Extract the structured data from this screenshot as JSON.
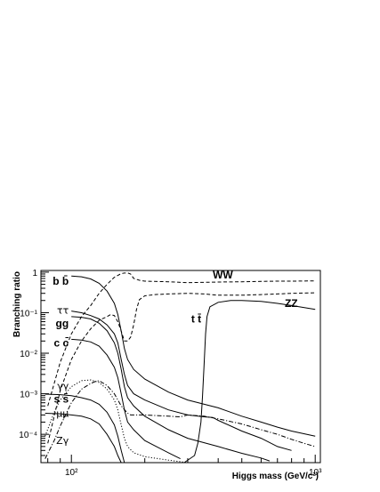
{
  "chart_data": {
    "type": "line",
    "xlabel": "Higgs mass (GeV/c²)",
    "ylabel": "Branching ratio",
    "xscale": "log",
    "yscale": "log",
    "xlim": [
      75,
      1050
    ],
    "ylim": [
      2e-05,
      1.1
    ],
    "x_ticks": [
      {
        "value": 100,
        "label": "10²"
      },
      {
        "value": 1000,
        "label": "10³"
      }
    ],
    "y_ticks": [
      {
        "value": 1,
        "label": "1"
      },
      {
        "value": 0.1,
        "label": "10⁻¹"
      },
      {
        "value": 0.01,
        "label": "10⁻²"
      },
      {
        "value": 0.001,
        "label": "10⁻³"
      },
      {
        "value": 0.0001,
        "label": "10⁻⁴"
      }
    ],
    "series": [
      {
        "name": "b b̄",
        "style": "solid",
        "label_pos": [
          100,
          0.6
        ],
        "points": [
          [
            100,
            0.8
          ],
          [
            110,
            0.77
          ],
          [
            120,
            0.68
          ],
          [
            130,
            0.53
          ],
          [
            140,
            0.34
          ],
          [
            150,
            0.17
          ],
          [
            155,
            0.09
          ],
          [
            160,
            0.035
          ],
          [
            165,
            0.013
          ],
          [
            170,
            0.007
          ],
          [
            180,
            0.004
          ],
          [
            200,
            0.0023
          ],
          [
            250,
            0.0011
          ],
          [
            300,
            0.0007
          ],
          [
            400,
            0.00045
          ],
          [
            500,
            0.00028
          ],
          [
            600,
            0.0002
          ],
          [
            700,
            0.00015
          ],
          [
            800,
            0.00012
          ],
          [
            1000,
            9e-05
          ]
        ]
      },
      {
        "name": "ττ",
        "style": "solid",
        "label_pos": [
          100,
          0.115
        ],
        "points": [
          [
            100,
            0.08
          ],
          [
            110,
            0.077
          ],
          [
            120,
            0.07
          ],
          [
            130,
            0.055
          ],
          [
            140,
            0.036
          ],
          [
            150,
            0.018
          ],
          [
            155,
            0.01
          ],
          [
            160,
            0.004
          ],
          [
            165,
            0.0015
          ],
          [
            170,
            0.0008
          ],
          [
            180,
            0.0005
          ],
          [
            200,
            0.00028
          ],
          [
            250,
            0.00013
          ],
          [
            300,
            8e-05
          ],
          [
            400,
            5e-05
          ],
          [
            500,
            3.4e-05
          ],
          [
            600,
            2.6e-05
          ],
          [
            650,
            2.2e-05
          ]
        ]
      },
      {
        "name": "gg",
        "style": "solid",
        "label_pos": [
          100,
          0.055
        ],
        "points": [
          [
            100,
            0.11
          ],
          [
            110,
            0.1
          ],
          [
            120,
            0.085
          ],
          [
            130,
            0.07
          ],
          [
            140,
            0.05
          ],
          [
            150,
            0.03
          ],
          [
            155,
            0.018
          ],
          [
            160,
            0.007
          ],
          [
            165,
            0.003
          ],
          [
            170,
            0.0016
          ],
          [
            180,
            0.001
          ],
          [
            200,
            0.0007
          ],
          [
            250,
            0.0004
          ],
          [
            300,
            0.0003
          ],
          [
            350,
            0.00027
          ],
          [
            380,
            0.00026
          ],
          [
            400,
            0.00022
          ],
          [
            500,
            0.00012
          ],
          [
            600,
            8e-05
          ],
          [
            700,
            5e-05
          ],
          [
            800,
            4e-05
          ]
        ]
      },
      {
        "name": "c c̄",
        "style": "solid",
        "label_pos": [
          100,
          0.018
        ],
        "points": [
          [
            100,
            0.022
          ],
          [
            110,
            0.021
          ],
          [
            120,
            0.019
          ],
          [
            130,
            0.015
          ],
          [
            140,
            0.009
          ],
          [
            150,
            0.0045
          ],
          [
            155,
            0.0025
          ],
          [
            160,
            0.001
          ],
          [
            165,
            0.0004
          ],
          [
            170,
            0.0002
          ],
          [
            180,
            0.00013
          ],
          [
            200,
            7e-05
          ],
          [
            250,
            3.5e-05
          ],
          [
            280,
            2.5e-05
          ]
        ]
      },
      {
        "name": "γγ",
        "style": "dotted",
        "label_pos": [
          100,
          0.0016
        ],
        "points": [
          [
            78,
            9e-05
          ],
          [
            85,
            0.00035
          ],
          [
            90,
            0.0007
          ],
          [
            100,
            0.0015
          ],
          [
            110,
            0.0021
          ],
          [
            120,
            0.0022
          ],
          [
            130,
            0.0019
          ],
          [
            140,
            0.0013
          ],
          [
            150,
            0.0007
          ],
          [
            155,
            0.0004
          ],
          [
            160,
            0.00017
          ],
          [
            165,
            8e-05
          ],
          [
            170,
            5e-05
          ],
          [
            180,
            3.5e-05
          ],
          [
            200,
            2.8e-05
          ],
          [
            250,
            2.3e-05
          ],
          [
            300,
            2e-05
          ]
        ]
      },
      {
        "name": "s s̄",
        "style": "solid",
        "label_pos": [
          100,
          0.00075
        ],
        "points": [
          [
            78,
            0.00098
          ],
          [
            90,
            0.00095
          ],
          [
            100,
            0.0009
          ],
          [
            110,
            0.0008
          ],
          [
            120,
            0.0007
          ],
          [
            130,
            0.00055
          ],
          [
            140,
            0.00035
          ],
          [
            150,
            0.00017
          ],
          [
            155,
            9e-05
          ],
          [
            160,
            4e-05
          ],
          [
            165,
            2e-05
          ]
        ]
      },
      {
        "name": "μμ",
        "style": "solid",
        "label_pos": [
          100,
          0.00033
        ],
        "points": [
          [
            78,
            0.00033
          ],
          [
            90,
            0.00032
          ],
          [
            100,
            0.0003
          ],
          [
            110,
            0.00028
          ],
          [
            120,
            0.00024
          ],
          [
            130,
            0.00018
          ],
          [
            140,
            0.0001
          ],
          [
            150,
            5e-05
          ],
          [
            155,
            3e-05
          ],
          [
            160,
            2e-05
          ]
        ]
      },
      {
        "name": "Zγ",
        "style": "dashdot",
        "label_pos": [
          100,
          7e-05
        ],
        "points": [
          [
            78,
            2.5e-05
          ],
          [
            85,
            7e-05
          ],
          [
            90,
            0.00016
          ],
          [
            100,
            0.0006
          ],
          [
            110,
            0.0013
          ],
          [
            120,
            0.0018
          ],
          [
            125,
            0.002
          ],
          [
            130,
            0.0021
          ],
          [
            140,
            0.0016
          ],
          [
            150,
            0.001
          ],
          [
            160,
            0.0005
          ],
          [
            170,
            0.00033
          ],
          [
            175,
            0.0003
          ],
          [
            180,
            0.0003
          ],
          [
            200,
            0.0003
          ],
          [
            250,
            0.00028
          ],
          [
            280,
            0.00027
          ],
          [
            300,
            0.0003
          ],
          [
            350,
            0.00028
          ],
          [
            400,
            0.00024
          ],
          [
            500,
            0.00018
          ],
          [
            600,
            0.00013
          ],
          [
            700,
            0.0001
          ],
          [
            800,
            7.5e-05
          ],
          [
            900,
            6e-05
          ],
          [
            1000,
            5e-05
          ]
        ]
      },
      {
        "name": "WW",
        "style": "dashed",
        "label_pos": [
          380,
          0.85
        ],
        "points": [
          [
            80,
            0.0005
          ],
          [
            90,
            0.006
          ],
          [
            100,
            0.03
          ],
          [
            110,
            0.08
          ],
          [
            120,
            0.15
          ],
          [
            130,
            0.3
          ],
          [
            140,
            0.5
          ],
          [
            150,
            0.75
          ],
          [
            160,
            0.92
          ],
          [
            165,
            0.95
          ],
          [
            170,
            0.96
          ],
          [
            175,
            0.9
          ],
          [
            180,
            0.7
          ],
          [
            190,
            0.63
          ],
          [
            200,
            0.6
          ],
          [
            250,
            0.58
          ],
          [
            300,
            0.55
          ],
          [
            400,
            0.57
          ],
          [
            500,
            0.58
          ],
          [
            600,
            0.59
          ],
          [
            700,
            0.6
          ],
          [
            800,
            0.6
          ],
          [
            1000,
            0.61
          ]
        ]
      },
      {
        "name": "ZZ",
        "style": "dashed",
        "label_pos": [
          750,
          0.17
        ],
        "points": [
          [
            80,
            6e-05
          ],
          [
            90,
            0.0012
          ],
          [
            100,
            0.007
          ],
          [
            110,
            0.02
          ],
          [
            120,
            0.04
          ],
          [
            130,
            0.065
          ],
          [
            140,
            0.08
          ],
          [
            145,
            0.09
          ],
          [
            150,
            0.085
          ],
          [
            155,
            0.06
          ],
          [
            160,
            0.035
          ],
          [
            165,
            0.02
          ],
          [
            170,
            0.02
          ],
          [
            175,
            0.025
          ],
          [
            180,
            0.05
          ],
          [
            185,
            0.12
          ],
          [
            190,
            0.21
          ],
          [
            200,
            0.26
          ],
          [
            220,
            0.28
          ],
          [
            250,
            0.29
          ],
          [
            300,
            0.3
          ],
          [
            350,
            0.29
          ],
          [
            400,
            0.27
          ],
          [
            500,
            0.27
          ],
          [
            600,
            0.28
          ],
          [
            700,
            0.29
          ],
          [
            800,
            0.3
          ],
          [
            1000,
            0.31
          ]
        ]
      },
      {
        "name": "t t̄",
        "style": "solid",
        "label_pos": [
          310,
          0.07
        ],
        "points": [
          [
            290,
            2e-05
          ],
          [
            320,
            3e-05
          ],
          [
            330,
            6e-05
          ],
          [
            340,
            0.0002
          ],
          [
            345,
            0.0009
          ],
          [
            350,
            0.005
          ],
          [
            355,
            0.03
          ],
          [
            360,
            0.08
          ],
          [
            370,
            0.14
          ],
          [
            400,
            0.18
          ],
          [
            450,
            0.2
          ],
          [
            500,
            0.2
          ],
          [
            600,
            0.19
          ],
          [
            700,
            0.17
          ],
          [
            800,
            0.15
          ],
          [
            1000,
            0.12
          ]
        ]
      }
    ]
  }
}
